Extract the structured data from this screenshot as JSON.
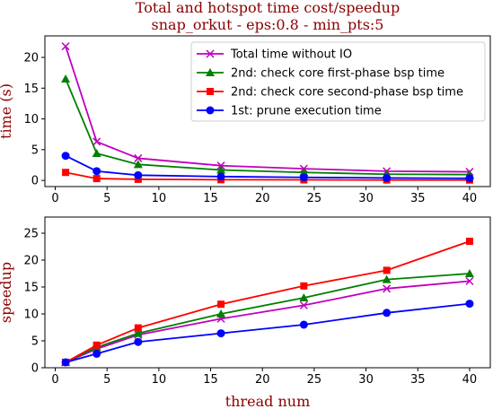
{
  "figure": {
    "title_line1": "Total and hotspot time cost/speedup",
    "title_line2": "snap_orkut - eps:0.8 - min_pts:5",
    "title_color": "#8b0000"
  },
  "chart_data": [
    {
      "type": "line",
      "ylabel": "time (s)",
      "xlabel": "",
      "x": [
        1,
        4,
        8,
        16,
        24,
        32,
        40
      ],
      "xlim": [
        -1,
        42
      ],
      "ylim": [
        -1,
        23.5
      ],
      "xticks": [
        0,
        5,
        10,
        15,
        20,
        25,
        30,
        35,
        40
      ],
      "yticks": [
        0,
        5,
        10,
        15,
        20
      ],
      "legend_position": "top-right",
      "grid": false,
      "series": [
        {
          "name": "Total time without IO",
          "color": "#bf00bf",
          "marker": "x",
          "values": [
            21.8,
            6.3,
            3.6,
            2.4,
            1.9,
            1.5,
            1.4
          ]
        },
        {
          "name": "2nd: check core first-phase bsp time",
          "color": "#008000",
          "marker": "triangle",
          "values": [
            16.5,
            4.4,
            2.6,
            1.7,
            1.3,
            1.0,
            0.95
          ]
        },
        {
          "name": "2nd: check core second-phase bsp time",
          "color": "#ff0000",
          "marker": "square",
          "values": [
            1.3,
            0.3,
            0.18,
            0.11,
            0.09,
            0.07,
            0.06
          ]
        },
        {
          "name": "1st: prune execution time",
          "color": "#0000ff",
          "marker": "circle",
          "values": [
            4.0,
            1.5,
            0.85,
            0.62,
            0.5,
            0.4,
            0.34
          ]
        }
      ]
    },
    {
      "type": "line",
      "ylabel": "speedup",
      "xlabel": "thread num",
      "x": [
        1,
        4,
        8,
        16,
        24,
        32,
        40
      ],
      "xlim": [
        -1,
        42
      ],
      "ylim": [
        0,
        28
      ],
      "xticks": [
        0,
        5,
        10,
        15,
        20,
        25,
        30,
        35,
        40
      ],
      "yticks": [
        0,
        5,
        10,
        15,
        20,
        25
      ],
      "grid": false,
      "series": [
        {
          "color": "#bf00bf",
          "marker": "x",
          "values": [
            1.0,
            3.5,
            6.1,
            9.1,
            11.6,
            14.7,
            16.1
          ]
        },
        {
          "color": "#008000",
          "marker": "triangle",
          "values": [
            1.0,
            3.8,
            6.4,
            10.0,
            13.0,
            16.4,
            17.5
          ]
        },
        {
          "color": "#ff0000",
          "marker": "square",
          "values": [
            1.0,
            4.2,
            7.4,
            11.8,
            15.2,
            18.1,
            23.5
          ]
        },
        {
          "color": "#0000ff",
          "marker": "circle",
          "values": [
            1.0,
            2.6,
            4.8,
            6.4,
            8.0,
            10.2,
            11.9
          ]
        }
      ]
    }
  ]
}
